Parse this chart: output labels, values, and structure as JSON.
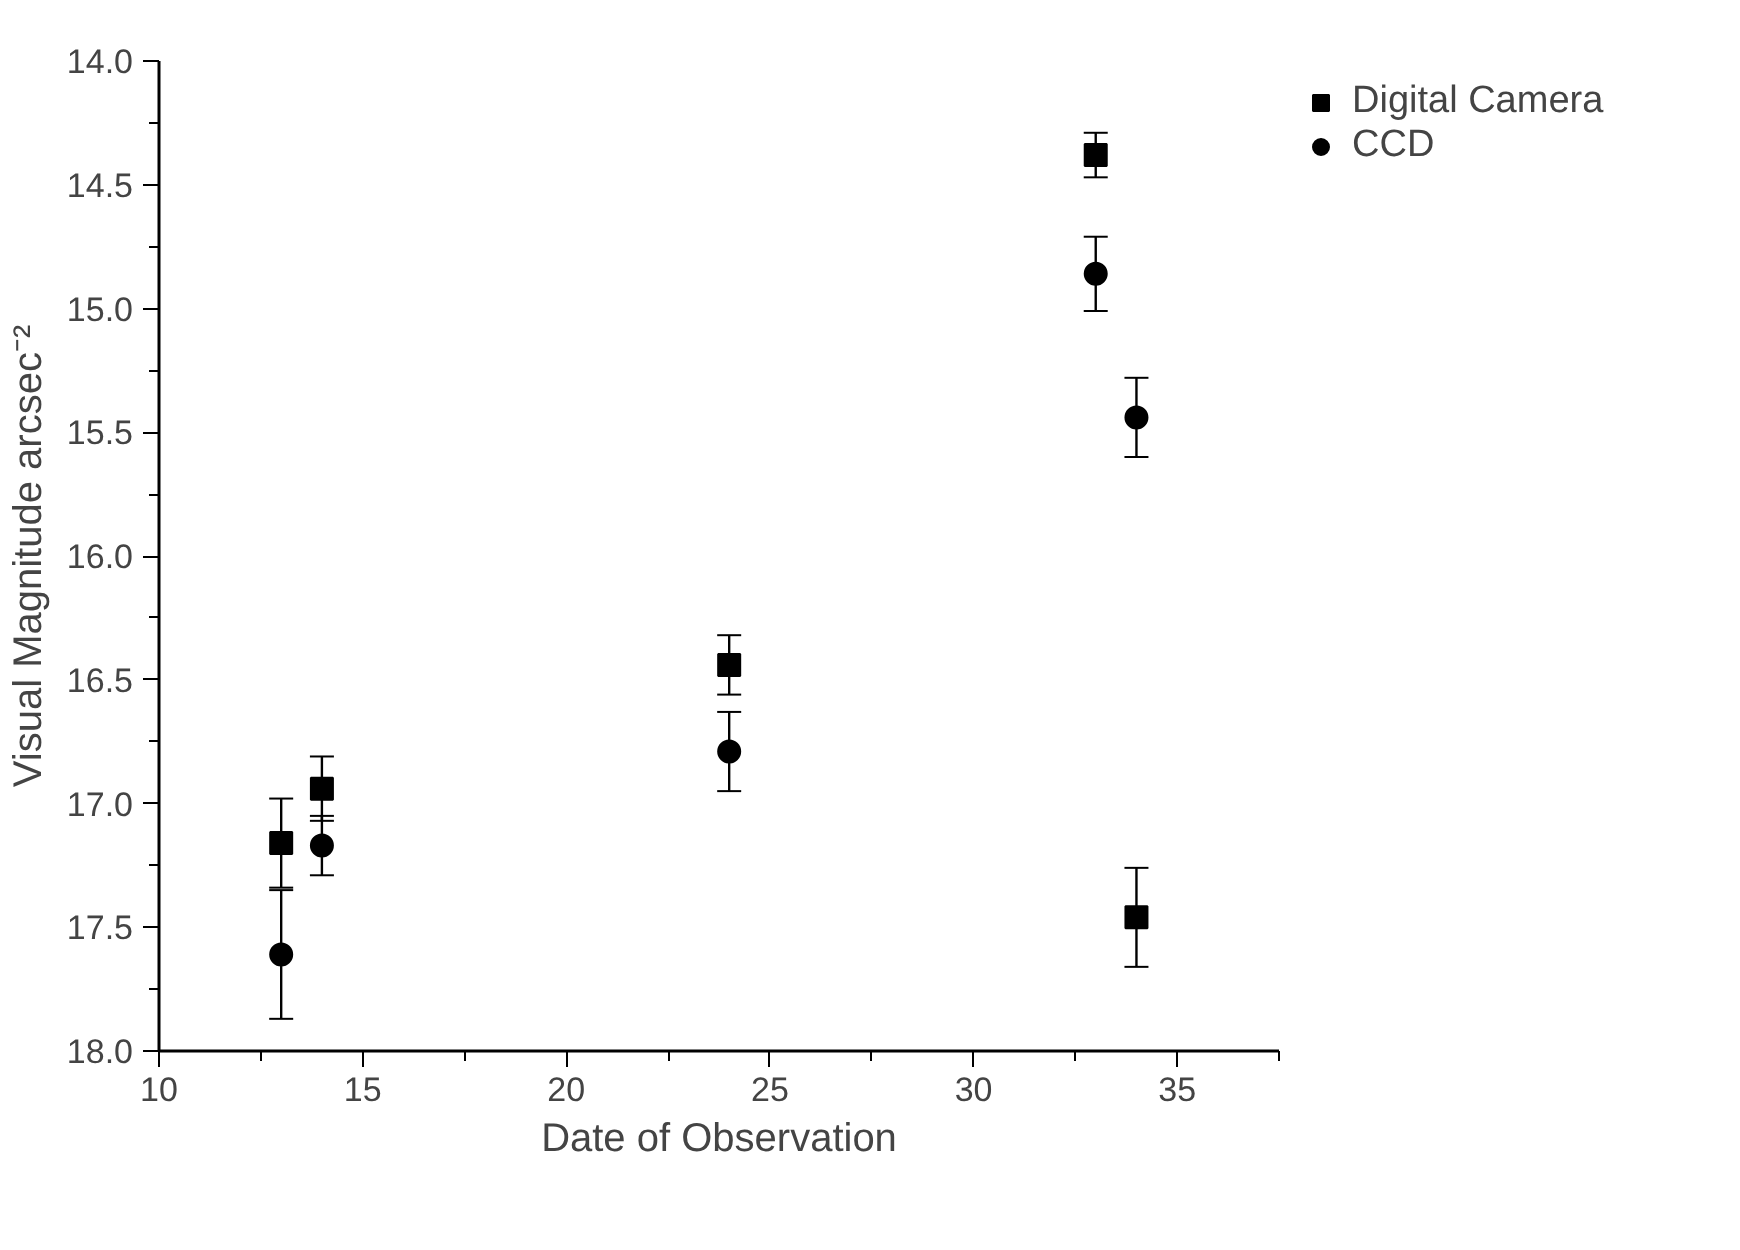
{
  "chart_data": {
    "type": "scatter",
    "xlabel": "Date of Observation",
    "ylabel": "Visual Magnitude arcsec⁻²",
    "xlim": [
      10,
      37.5
    ],
    "xticks": [
      10,
      15,
      20,
      25,
      30,
      35
    ],
    "ylim": [
      18,
      14
    ],
    "yticks": [
      {
        "value": 14,
        "label": "14.0"
      },
      {
        "value": 14.5,
        "label": "14.5"
      },
      {
        "value": 15,
        "label": "15.0"
      },
      {
        "value": 15.5,
        "label": "15.5"
      },
      {
        "value": 16,
        "label": "16.0"
      },
      {
        "value": 16.5,
        "label": "16.5"
      },
      {
        "value": 17,
        "label": "17.0"
      },
      {
        "value": 17.5,
        "label": "17.5"
      },
      {
        "value": 18,
        "label": "18.0"
      }
    ],
    "x": [
      13,
      14,
      24,
      33,
      34
    ],
    "series": [
      {
        "name": "Digital Camera",
        "color": "#000000",
        "marker": "square",
        "values": [
          17.16,
          16.94,
          16.44,
          14.38,
          17.46
        ],
        "errors": [
          0.18,
          0.13,
          0.12,
          0.09,
          0.2
        ]
      },
      {
        "name": "CCD",
        "color": "#000000",
        "marker": "circle",
        "values": [
          17.61,
          17.17,
          16.79,
          14.86,
          15.44
        ],
        "errors": [
          0.26,
          0.12,
          0.16,
          0.15,
          0.16
        ]
      }
    ],
    "grid": false,
    "legend": "top right"
  }
}
